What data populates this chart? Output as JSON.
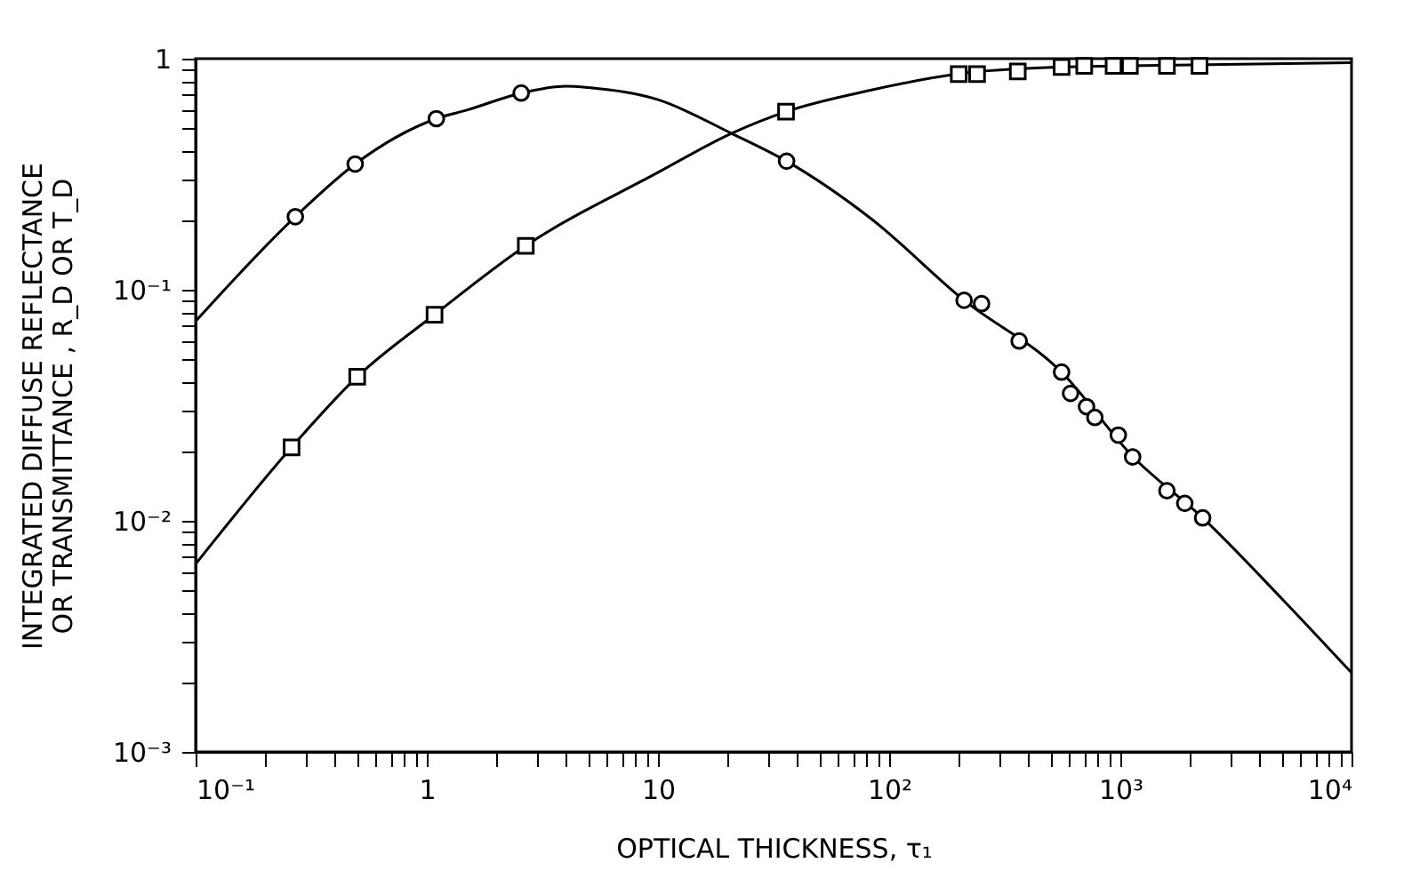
{
  "chart_data": {
    "type": "scatter",
    "xlabel": "OPTICAL  THICKNESS,  τ₁",
    "ylabel": "INTEGRATED  DIFFUSE  REFLECTANCE\nOR  TRANSMITTANCE ,  R_D  OR  T_D",
    "log": "xy",
    "grid": false,
    "xlim": [
      0.1,
      10000
    ],
    "ylim": [
      0.001,
      1
    ],
    "xticks": [
      {
        "value": 0.1,
        "label": "10⁻¹"
      },
      {
        "value": 0.2,
        "label": null
      },
      {
        "value": 0.3,
        "label": null
      },
      {
        "value": 0.4,
        "label": null
      },
      {
        "value": 0.5,
        "label": null
      },
      {
        "value": 0.6,
        "label": null
      },
      {
        "value": 0.7,
        "label": null
      },
      {
        "value": 0.8,
        "label": null
      },
      {
        "value": 0.9,
        "label": null
      },
      1,
      {
        "value": 2,
        "label": null
      },
      {
        "value": 3,
        "label": null
      },
      {
        "value": 4,
        "label": null
      },
      {
        "value": 5,
        "label": null
      },
      {
        "value": 6,
        "label": null
      },
      {
        "value": 7,
        "label": null
      },
      {
        "value": 8,
        "label": null
      },
      {
        "value": 9,
        "label": null
      },
      10,
      {
        "value": 20,
        "label": null
      },
      {
        "value": 30,
        "label": null
      },
      {
        "value": 40,
        "label": null
      },
      {
        "value": 50,
        "label": null
      },
      {
        "value": 60,
        "label": null
      },
      {
        "value": 70,
        "label": null
      },
      {
        "value": 80,
        "label": null
      },
      {
        "value": 90,
        "label": null
      },
      {
        "value": 100,
        "label": "10²"
      },
      {
        "value": 200,
        "label": null
      },
      {
        "value": 300,
        "label": null
      },
      {
        "value": 400,
        "label": null
      },
      {
        "value": 500,
        "label": null
      },
      {
        "value": 600,
        "label": null
      },
      {
        "value": 700,
        "label": null
      },
      {
        "value": 800,
        "label": null
      },
      {
        "value": 900,
        "label": null
      },
      {
        "value": 1000,
        "label": "10³"
      },
      {
        "value": 2000,
        "label": null
      },
      {
        "value": 3000,
        "label": null
      },
      {
        "value": 4000,
        "label": null
      },
      {
        "value": 5000,
        "label": null
      },
      {
        "value": 6000,
        "label": null
      },
      {
        "value": 7000,
        "label": null
      },
      {
        "value": 8000,
        "label": null
      },
      {
        "value": 9000,
        "label": null
      },
      {
        "value": 10000,
        "label": "10⁴"
      }
    ],
    "yticks": [
      {
        "value": 0.001,
        "label": "10⁻³"
      },
      {
        "value": 0.002,
        "label": null
      },
      {
        "value": 0.003,
        "label": null
      },
      {
        "value": 0.004,
        "label": null
      },
      {
        "value": 0.005,
        "label": null
      },
      {
        "value": 0.006,
        "label": null
      },
      {
        "value": 0.007,
        "label": null
      },
      {
        "value": 0.008,
        "label": null
      },
      {
        "value": 0.009,
        "label": null
      },
      {
        "value": 0.01,
        "label": "10⁻²"
      },
      {
        "value": 0.02,
        "label": null
      },
      {
        "value": 0.03,
        "label": null
      },
      {
        "value": 0.04,
        "label": null
      },
      {
        "value": 0.05,
        "label": null
      },
      {
        "value": 0.06,
        "label": null
      },
      {
        "value": 0.07,
        "label": null
      },
      {
        "value": 0.08,
        "label": null
      },
      {
        "value": 0.09,
        "label": null
      },
      {
        "value": 0.1,
        "label": "10⁻¹"
      },
      {
        "value": 0.2,
        "label": null
      },
      {
        "value": 0.3,
        "label": null
      },
      {
        "value": 0.4,
        "label": null
      },
      {
        "value": 0.5,
        "label": null
      },
      {
        "value": 0.6,
        "label": null
      },
      {
        "value": 0.7,
        "label": null
      },
      {
        "value": 0.8,
        "label": null
      },
      {
        "value": 0.9,
        "label": null
      },
      1
    ],
    "series": [
      {
        "type": "line",
        "color": "#000000",
        "marker": "none",
        "line_style": "solid",
        "x": [
          0.1,
          0.27,
          0.49,
          1.1,
          1.5,
          2.56,
          4,
          5,
          10,
          20.8,
          36,
          83,
          211,
          557,
          1130,
          2270,
          5000,
          10000
        ],
        "values": [
          0.073,
          0.207,
          0.35,
          0.55,
          0.6,
          0.71,
          0.76,
          0.75,
          0.665,
          0.475,
          0.36,
          0.204,
          0.09,
          0.044,
          0.019,
          0.0103,
          0.0046,
          0.0022
        ]
      },
      {
        "type": "line",
        "color": "#000000",
        "marker": "none",
        "line_style": "solid",
        "x": [
          0.1,
          0.26,
          0.5,
          1.08,
          2.68,
          9.9,
          20.8,
          35.8,
          83,
          200,
          557,
          1000,
          10000
        ],
        "values": [
          0.0065,
          0.0208,
          0.042,
          0.078,
          0.155,
          0.32,
          0.475,
          0.59,
          0.73,
          0.86,
          0.92,
          0.93,
          0.96
        ]
      },
      {
        "color": "#000000",
        "marker": "circle",
        "x": [
          0.27,
          0.49,
          1.1,
          2.56,
          36,
          211,
          251,
          365,
          557,
          609,
          714,
          776,
          980,
          1130,
          1590,
          1900,
          2270
        ],
        "values": [
          0.207,
          0.35,
          0.55,
          0.71,
          0.36,
          0.09,
          0.087,
          0.06,
          0.044,
          0.0356,
          0.0312,
          0.028,
          0.0235,
          0.0189,
          0.0135,
          0.0119,
          0.0103
        ]
      },
      {
        "color": "#000000",
        "marker": "square",
        "x": [
          0.26,
          0.5,
          1.08,
          2.68,
          35.8,
          200,
          240,
          360,
          557,
          698,
          935,
          1100,
          1590,
          2200
        ],
        "values": [
          0.0208,
          0.042,
          0.078,
          0.155,
          0.59,
          0.857,
          0.857,
          0.88,
          0.92,
          0.93,
          0.93,
          0.93,
          0.93,
          0.93
        ]
      }
    ]
  }
}
